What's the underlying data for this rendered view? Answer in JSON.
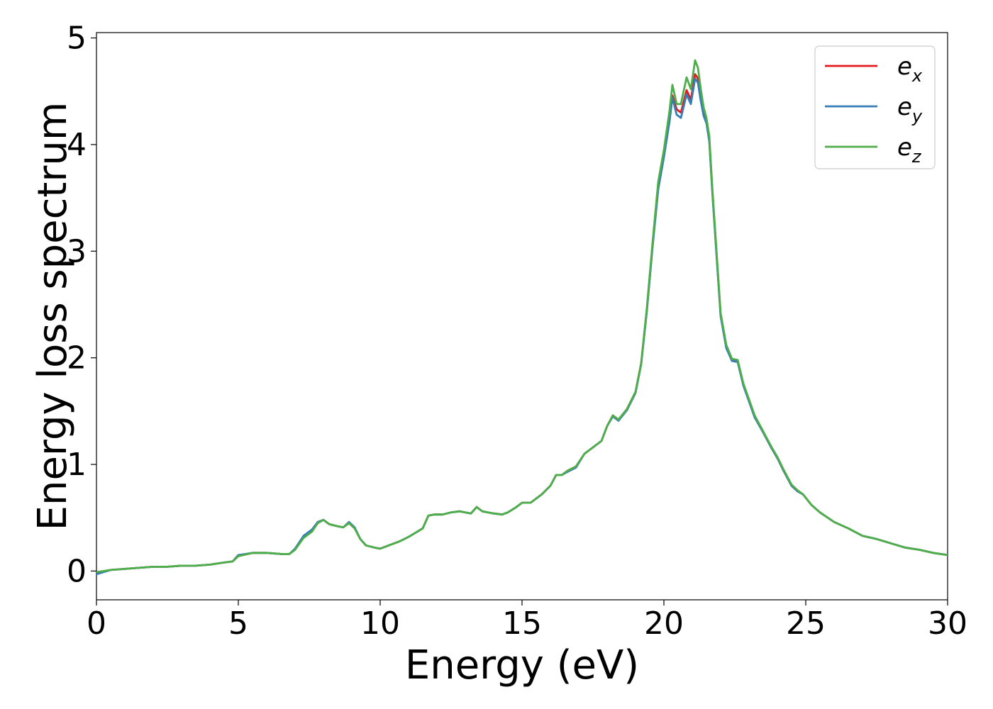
{
  "chart_data": {
    "type": "line",
    "title": "",
    "xlabel": "Energy (eV)",
    "ylabel": "Energy loss spectrum",
    "xlim": [
      0,
      30
    ],
    "ylim": [
      -0.27,
      5.05
    ],
    "x_ticks": [
      0,
      5,
      10,
      15,
      20,
      25,
      30
    ],
    "y_ticks": [
      0,
      1,
      2,
      3,
      4,
      5
    ],
    "x_tick_labels": [
      "0",
      "5",
      "10",
      "15",
      "20",
      "25",
      "30"
    ],
    "y_tick_labels": [
      "0",
      "1",
      "2",
      "3",
      "4",
      "5"
    ],
    "grid": false,
    "legend_position": "top-right",
    "series": [
      {
        "name": "e_x",
        "legend_base": "e",
        "legend_sub": "x",
        "color": "#e41a1c",
        "x": [
          0,
          0.5,
          1,
          1.5,
          2,
          2.5,
          3,
          3.5,
          4,
          4.5,
          4.8,
          5,
          5.5,
          6,
          6.5,
          6.8,
          7,
          7.3,
          7.6,
          7.8,
          8,
          8.2,
          8.5,
          8.7,
          8.9,
          9.1,
          9.3,
          9.5,
          9.8,
          10,
          10.3,
          10.7,
          11,
          11.5,
          11.7,
          11.9,
          12,
          12.2,
          12.5,
          12.8,
          13,
          13.2,
          13.4,
          13.6,
          13.8,
          14,
          14.3,
          14.5,
          14.8,
          15,
          15.3,
          15.7,
          16,
          16.2,
          16.4,
          16.6,
          16.9,
          17.2,
          17.5,
          17.8,
          18,
          18.2,
          18.4,
          18.7,
          19,
          19.2,
          19.4,
          19.6,
          19.8,
          20,
          20.2,
          20.3,
          20.45,
          20.6,
          20.8,
          20.95,
          21.1,
          21.2,
          21.3,
          21.4,
          21.5,
          21.6,
          21.7,
          21.85,
          22,
          22.2,
          22.4,
          22.6,
          22.8,
          23,
          23.2,
          23.5,
          23.8,
          24,
          24.2,
          24.5,
          24.7,
          24.9,
          25.2,
          25.5,
          26,
          26.5,
          27,
          27.5,
          28,
          28.5,
          29,
          29.5,
          30
        ],
        "y": [
          -0.02,
          0.01,
          0.02,
          0.03,
          0.04,
          0.04,
          0.05,
          0.05,
          0.06,
          0.08,
          0.09,
          0.14,
          0.17,
          0.17,
          0.16,
          0.16,
          0.2,
          0.32,
          0.38,
          0.45,
          0.48,
          0.44,
          0.42,
          0.41,
          0.45,
          0.4,
          0.3,
          0.24,
          0.22,
          0.21,
          0.24,
          0.28,
          0.32,
          0.4,
          0.52,
          0.53,
          0.53,
          0.53,
          0.55,
          0.56,
          0.55,
          0.54,
          0.6,
          0.56,
          0.55,
          0.54,
          0.53,
          0.55,
          0.6,
          0.64,
          0.64,
          0.72,
          0.8,
          0.9,
          0.9,
          0.94,
          0.98,
          1.1,
          1.16,
          1.22,
          1.36,
          1.46,
          1.42,
          1.52,
          1.68,
          1.95,
          2.45,
          3.05,
          3.6,
          3.9,
          4.25,
          4.46,
          4.33,
          4.3,
          4.51,
          4.42,
          4.66,
          4.62,
          4.45,
          4.3,
          4.22,
          4.05,
          3.6,
          3.0,
          2.4,
          2.1,
          1.98,
          1.97,
          1.75,
          1.6,
          1.45,
          1.3,
          1.15,
          1.06,
          0.95,
          0.8,
          0.75,
          0.72,
          0.62,
          0.55,
          0.46,
          0.4,
          0.33,
          0.3,
          0.26,
          0.22,
          0.2,
          0.17,
          0.15
        ]
      },
      {
        "name": "e_y",
        "legend_base": "e",
        "legend_sub": "y",
        "color": "#377eb8",
        "x": [
          0,
          0.5,
          1,
          1.5,
          2,
          2.5,
          3,
          3.5,
          4,
          4.5,
          4.8,
          5,
          5.5,
          6,
          6.5,
          6.8,
          7,
          7.3,
          7.6,
          7.8,
          8,
          8.2,
          8.5,
          8.7,
          8.9,
          9.1,
          9.3,
          9.5,
          9.8,
          10,
          10.3,
          10.7,
          11,
          11.5,
          11.7,
          11.9,
          12,
          12.2,
          12.5,
          12.8,
          13,
          13.2,
          13.4,
          13.6,
          13.8,
          14,
          14.3,
          14.5,
          14.8,
          15,
          15.3,
          15.7,
          16,
          16.2,
          16.4,
          16.6,
          16.9,
          17.2,
          17.5,
          17.8,
          18,
          18.2,
          18.4,
          18.7,
          19,
          19.2,
          19.4,
          19.6,
          19.8,
          20,
          20.2,
          20.3,
          20.45,
          20.6,
          20.8,
          20.95,
          21.1,
          21.2,
          21.3,
          21.4,
          21.5,
          21.6,
          21.7,
          21.85,
          22,
          22.2,
          22.4,
          22.6,
          22.8,
          23,
          23.2,
          23.5,
          23.8,
          24,
          24.2,
          24.5,
          24.7,
          24.9,
          25.2,
          25.5,
          26,
          26.5,
          27,
          27.5,
          28,
          28.5,
          29,
          29.5,
          30
        ],
        "y": [
          -0.03,
          0.01,
          0.02,
          0.03,
          0.04,
          0.04,
          0.05,
          0.05,
          0.06,
          0.08,
          0.09,
          0.15,
          0.17,
          0.17,
          0.16,
          0.16,
          0.21,
          0.33,
          0.39,
          0.46,
          0.48,
          0.44,
          0.42,
          0.41,
          0.46,
          0.41,
          0.3,
          0.24,
          0.22,
          0.21,
          0.24,
          0.28,
          0.32,
          0.4,
          0.52,
          0.53,
          0.53,
          0.53,
          0.55,
          0.56,
          0.55,
          0.54,
          0.6,
          0.56,
          0.55,
          0.54,
          0.53,
          0.55,
          0.6,
          0.64,
          0.64,
          0.72,
          0.8,
          0.9,
          0.9,
          0.93,
          0.97,
          1.1,
          1.16,
          1.22,
          1.36,
          1.45,
          1.41,
          1.51,
          1.67,
          1.94,
          2.44,
          3.04,
          3.58,
          3.88,
          4.22,
          4.44,
          4.28,
          4.25,
          4.47,
          4.38,
          4.62,
          4.58,
          4.41,
          4.27,
          4.2,
          4.03,
          3.58,
          2.98,
          2.39,
          2.09,
          1.97,
          1.96,
          1.74,
          1.59,
          1.44,
          1.3,
          1.15,
          1.06,
          0.95,
          0.8,
          0.75,
          0.72,
          0.62,
          0.55,
          0.46,
          0.4,
          0.33,
          0.3,
          0.26,
          0.22,
          0.2,
          0.17,
          0.15
        ]
      },
      {
        "name": "e_z",
        "legend_base": "e",
        "legend_sub": "z",
        "color": "#4daf4a",
        "x": [
          0,
          0.5,
          1,
          1.5,
          2,
          2.5,
          3,
          3.5,
          4,
          4.5,
          4.8,
          5,
          5.5,
          6,
          6.5,
          6.8,
          7,
          7.3,
          7.6,
          7.8,
          8,
          8.2,
          8.5,
          8.7,
          8.9,
          9.1,
          9.3,
          9.5,
          9.8,
          10,
          10.3,
          10.7,
          11,
          11.5,
          11.7,
          11.9,
          12,
          12.2,
          12.5,
          12.8,
          13,
          13.2,
          13.4,
          13.6,
          13.8,
          14,
          14.3,
          14.5,
          14.8,
          15,
          15.3,
          15.7,
          16,
          16.2,
          16.4,
          16.6,
          16.9,
          17.2,
          17.5,
          17.8,
          18,
          18.2,
          18.4,
          18.7,
          19,
          19.2,
          19.4,
          19.6,
          19.8,
          20,
          20.2,
          20.3,
          20.45,
          20.6,
          20.8,
          20.95,
          21.1,
          21.2,
          21.3,
          21.4,
          21.5,
          21.6,
          21.7,
          21.85,
          22,
          22.2,
          22.4,
          22.6,
          22.8,
          23,
          23.2,
          23.5,
          23.8,
          24,
          24.2,
          24.5,
          24.7,
          24.9,
          25.2,
          25.5,
          26,
          26.5,
          27,
          27.5,
          28,
          28.5,
          29,
          29.5,
          30
        ],
        "y": [
          -0.01,
          0.01,
          0.02,
          0.03,
          0.04,
          0.04,
          0.05,
          0.05,
          0.06,
          0.08,
          0.09,
          0.14,
          0.17,
          0.17,
          0.16,
          0.16,
          0.2,
          0.31,
          0.37,
          0.45,
          0.48,
          0.44,
          0.42,
          0.41,
          0.45,
          0.4,
          0.3,
          0.24,
          0.22,
          0.21,
          0.24,
          0.28,
          0.32,
          0.4,
          0.52,
          0.53,
          0.53,
          0.53,
          0.55,
          0.56,
          0.55,
          0.54,
          0.6,
          0.56,
          0.55,
          0.54,
          0.53,
          0.55,
          0.6,
          0.64,
          0.64,
          0.72,
          0.8,
          0.9,
          0.9,
          0.94,
          0.98,
          1.1,
          1.16,
          1.22,
          1.36,
          1.46,
          1.42,
          1.52,
          1.68,
          1.95,
          2.47,
          3.08,
          3.65,
          3.95,
          4.32,
          4.56,
          4.38,
          4.38,
          4.63,
          4.52,
          4.79,
          4.72,
          4.52,
          4.35,
          4.25,
          4.08,
          3.62,
          3.02,
          2.42,
          2.12,
          1.99,
          1.98,
          1.76,
          1.61,
          1.46,
          1.31,
          1.16,
          1.07,
          0.96,
          0.81,
          0.76,
          0.72,
          0.62,
          0.55,
          0.46,
          0.4,
          0.33,
          0.3,
          0.26,
          0.22,
          0.2,
          0.17,
          0.15
        ]
      }
    ]
  }
}
